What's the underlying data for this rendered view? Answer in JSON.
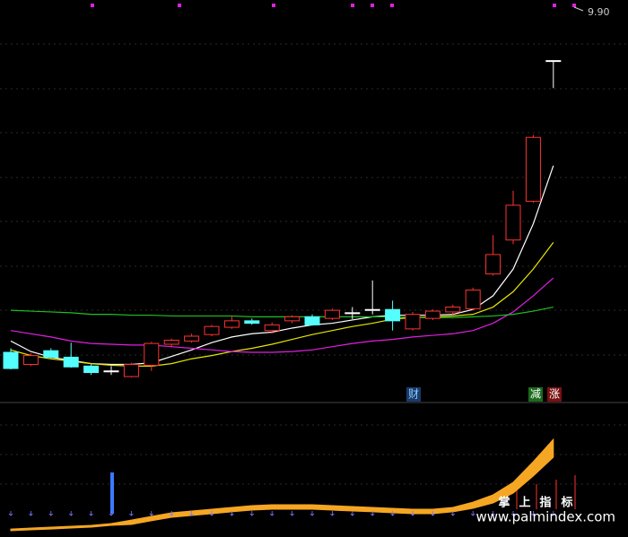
{
  "chart_data": [
    {
      "type": "candlestick",
      "ylim": [
        5.06,
        10.03
      ],
      "up_color": "#ff3232",
      "down_color": "#54ffff",
      "flat_color": "#ffffff",
      "open": [
        5.67,
        5.52,
        5.69,
        5.61,
        5.5,
        5.44,
        5.37,
        5.51,
        5.77,
        5.81,
        5.89,
        5.98,
        6.06,
        5.94,
        6.06,
        6.11,
        6.09,
        6.16,
        6.2,
        6.2,
        5.96,
        6.09,
        6.17,
        6.21,
        6.64,
        7.06,
        7.54,
        9.28
      ],
      "high": [
        5.72,
        5.66,
        5.72,
        5.79,
        5.52,
        5.5,
        5.54,
        5.8,
        5.84,
        5.9,
        6.01,
        6.12,
        6.09,
        6.04,
        6.13,
        6.14,
        6.21,
        6.23,
        6.56,
        6.31,
        6.17,
        6.2,
        6.26,
        6.47,
        7.12,
        7.67,
        8.36,
        9.28
      ],
      "low": [
        5.46,
        5.5,
        5.59,
        5.48,
        5.39,
        5.39,
        5.36,
        5.44,
        5.74,
        5.79,
        5.87,
        5.96,
        6.01,
        5.9,
        6.03,
        6.0,
        6.07,
        6.08,
        6.14,
        5.94,
        5.94,
        6.07,
        6.14,
        6.19,
        6.62,
        7.01,
        7.52,
        8.94
      ],
      "close": [
        5.47,
        5.63,
        5.61,
        5.49,
        5.42,
        5.44,
        5.52,
        5.78,
        5.82,
        5.87,
        5.99,
        6.06,
        6.03,
        6.01,
        6.11,
        6.01,
        6.19,
        6.16,
        6.2,
        6.06,
        6.14,
        6.18,
        6.23,
        6.44,
        6.88,
        7.49,
        8.33,
        9.28
      ],
      "lines": [
        {
          "color": "#ffffff",
          "values": [
            5.81,
            5.68,
            5.61,
            5.57,
            5.53,
            5.52,
            5.52,
            5.54,
            5.62,
            5.7,
            5.79,
            5.86,
            5.9,
            5.92,
            5.97,
            6.01,
            6.03,
            6.07,
            6.11,
            6.13,
            6.13,
            6.13,
            6.14,
            6.2,
            6.37,
            6.7,
            7.26,
            7.98
          ]
        },
        {
          "color": "#e6e600",
          "values": [
            5.7,
            5.63,
            5.59,
            5.56,
            5.53,
            5.51,
            5.5,
            5.5,
            5.53,
            5.59,
            5.63,
            5.68,
            5.72,
            5.77,
            5.83,
            5.89,
            5.94,
            5.99,
            6.03,
            6.08,
            6.1,
            6.11,
            6.12,
            6.14,
            6.23,
            6.42,
            6.7,
            7.03
          ]
        },
        {
          "color": "#e020e0",
          "values": [
            5.94,
            5.9,
            5.86,
            5.81,
            5.78,
            5.77,
            5.76,
            5.76,
            5.74,
            5.72,
            5.7,
            5.68,
            5.67,
            5.67,
            5.68,
            5.7,
            5.74,
            5.78,
            5.81,
            5.83,
            5.86,
            5.88,
            5.9,
            5.94,
            6.03,
            6.17,
            6.37,
            6.59
          ]
        },
        {
          "color": "#20c020",
          "values": [
            6.19,
            6.18,
            6.17,
            6.16,
            6.14,
            6.14,
            6.13,
            6.13,
            6.12,
            6.12,
            6.12,
            6.12,
            6.11,
            6.11,
            6.11,
            6.11,
            6.11,
            6.11,
            6.11,
            6.11,
            6.1,
            6.1,
            6.1,
            6.11,
            6.12,
            6.14,
            6.18,
            6.23
          ]
        }
      ],
      "price_marker": "9.90",
      "events": [
        "财",
        "减",
        "涨"
      ]
    },
    {
      "type": "band",
      "ylim": [
        0,
        100
      ],
      "color": "#f5a623",
      "upper": [
        3.4,
        4.1,
        4.8,
        5.5,
        6.2,
        7.6,
        10.3,
        13.1,
        15.9,
        17.2,
        18.6,
        20.0,
        21.4,
        22.1,
        22.1,
        22.1,
        21.4,
        20.7,
        20.0,
        19.3,
        18.6,
        18.6,
        20.0,
        24.1,
        29.7,
        39.3,
        55.2,
        72.4
      ],
      "lower": [
        2.1,
        2.8,
        3.4,
        4.1,
        4.8,
        6.2,
        6.9,
        9.7,
        12.4,
        13.8,
        15.2,
        16.6,
        17.9,
        18.6,
        18.6,
        18.6,
        17.9,
        17.2,
        16.6,
        15.9,
        15.2,
        15.2,
        16.6,
        19.3,
        23.4,
        31.0,
        44.1,
        58.6
      ],
      "signal_text": [
        "掌",
        "上",
        "指",
        "标"
      ],
      "watermark": "www.palmindex.com"
    }
  ]
}
